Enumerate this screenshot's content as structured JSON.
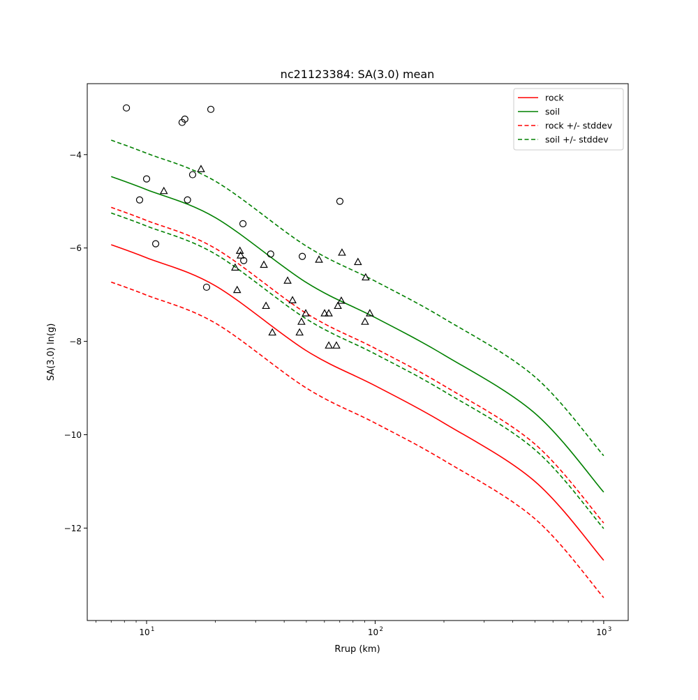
{
  "chart_data": {
    "type": "line",
    "title": "nc21123384: SA(3.0) mean",
    "xlabel": "Rrup (km)",
    "ylabel": "SA(3.0) ln(g)",
    "xscale": "log",
    "xlim": [
      5.5,
      1280
    ],
    "ylim": [
      -13.98,
      -2.48
    ],
    "xticks": [
      {
        "value": 10,
        "base": "10",
        "exp": "1"
      },
      {
        "value": 100,
        "base": "10",
        "exp": "2"
      },
      {
        "value": 1000,
        "base": "10",
        "exp": "3"
      }
    ],
    "yticks": [
      {
        "value": -4,
        "label": "−4"
      },
      {
        "value": -6,
        "label": "−6"
      },
      {
        "value": -8,
        "label": "−8"
      },
      {
        "value": -10,
        "label": "−10"
      },
      {
        "value": -12,
        "label": "−12"
      }
    ],
    "grid": false,
    "legend_position": "top-right",
    "x": [
      7,
      10,
      20,
      50,
      100,
      200,
      500,
      1000
    ],
    "series": [
      {
        "name": "rock",
        "color": "#ff0000",
        "dash": false,
        "legend": true,
        "values": [
          -5.93,
          -6.21,
          -6.81,
          -8.2,
          -8.95,
          -9.75,
          -11.0,
          -12.69
        ]
      },
      {
        "name": "soil",
        "color": "#008000",
        "dash": false,
        "legend": true,
        "values": [
          -4.47,
          -4.75,
          -5.35,
          -6.74,
          -7.49,
          -8.29,
          -9.54,
          -11.23
        ]
      },
      {
        "name": "rock +/- stddev",
        "color": "#ff0000",
        "dash": true,
        "legend": true,
        "values": [
          -5.13,
          -5.41,
          -6.01,
          -7.4,
          -8.15,
          -8.95,
          -10.2,
          -11.89
        ]
      },
      {
        "name": "rock - stddev",
        "color": "#ff0000",
        "dash": true,
        "legend": false,
        "values": [
          -6.73,
          -7.01,
          -7.61,
          -9.0,
          -9.75,
          -10.55,
          -11.8,
          -13.49
        ]
      },
      {
        "name": "soil +/- stddev",
        "color": "#008000",
        "dash": true,
        "legend": true,
        "values": [
          -3.69,
          -3.97,
          -4.57,
          -5.96,
          -6.71,
          -7.51,
          -8.76,
          -10.45
        ]
      },
      {
        "name": "soil - stddev",
        "color": "#008000",
        "dash": true,
        "legend": false,
        "values": [
          -5.25,
          -5.53,
          -6.13,
          -7.52,
          -8.27,
          -9.07,
          -10.32,
          -12.01
        ]
      }
    ],
    "scatter_circles": [
      [
        8.16,
        -3.0
      ],
      [
        14.7,
        -3.24
      ],
      [
        14.3,
        -3.31
      ],
      [
        19.1,
        -3.03
      ],
      [
        10.0,
        -4.52
      ],
      [
        15.9,
        -4.43
      ],
      [
        9.32,
        -4.97
      ],
      [
        15.1,
        -4.97
      ],
      [
        10.96,
        -5.91
      ],
      [
        26.4,
        -5.48
      ],
      [
        34.9,
        -6.13
      ],
      [
        48.0,
        -6.18
      ],
      [
        18.3,
        -6.84
      ],
      [
        26.6,
        -6.27
      ],
      [
        70.1,
        -5.0
      ]
    ],
    "scatter_triangles": [
      [
        17.3,
        -4.31
      ],
      [
        11.9,
        -4.78
      ],
      [
        25.6,
        -6.06
      ],
      [
        25.8,
        -6.16
      ],
      [
        24.4,
        -6.42
      ],
      [
        24.9,
        -6.9
      ],
      [
        32.6,
        -6.36
      ],
      [
        33.3,
        -7.24
      ],
      [
        35.5,
        -7.81
      ],
      [
        41.4,
        -6.7
      ],
      [
        43.5,
        -7.12
      ],
      [
        46.7,
        -7.81
      ],
      [
        47.6,
        -7.58
      ],
      [
        49.7,
        -7.4
      ],
      [
        56.8,
        -6.25
      ],
      [
        60.1,
        -7.4
      ],
      [
        62.7,
        -7.4
      ],
      [
        62.7,
        -8.09
      ],
      [
        67.7,
        -8.09
      ],
      [
        68.7,
        -7.24
      ],
      [
        71.1,
        -7.13
      ],
      [
        71.6,
        -6.1
      ],
      [
        84.1,
        -6.3
      ],
      [
        90.9,
        -6.63
      ],
      [
        90.3,
        -7.58
      ],
      [
        94.8,
        -7.4
      ]
    ]
  }
}
